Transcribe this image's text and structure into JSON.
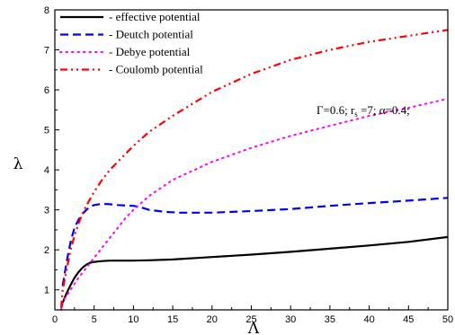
{
  "chart_data": {
    "type": "line",
    "xlabel": "Λ",
    "ylabel": "λ",
    "xlim": [
      0,
      50
    ],
    "ylim": [
      0.5,
      8
    ],
    "x_ticks": [
      "0",
      "5",
      "10",
      "15",
      "20",
      "25",
      "30",
      "35",
      "40",
      "45",
      "50"
    ],
    "y_ticks": [
      "1",
      "2",
      "3",
      "4",
      "5",
      "6",
      "7",
      "8"
    ],
    "grid": false,
    "legend_position": "top-left",
    "annotation": {
      "gamma": "Γ=0.6; r",
      "sub": "s",
      "rs": " =7; ",
      "alpha": "α=0.4;"
    },
    "series": [
      {
        "name": "effective potential",
        "legend_label": "- effective potential",
        "color": "#000000",
        "dash": "solid",
        "x": [
          0.8,
          1,
          1.5,
          2,
          2.5,
          3,
          3.5,
          4,
          4.5,
          5,
          6,
          7,
          8,
          10,
          12,
          15,
          20,
          25,
          30,
          35,
          40,
          45,
          50
        ],
        "y": [
          0.55,
          0.68,
          0.92,
          1.12,
          1.3,
          1.44,
          1.55,
          1.63,
          1.68,
          1.7,
          1.72,
          1.73,
          1.73,
          1.73,
          1.74,
          1.76,
          1.82,
          1.88,
          1.95,
          2.03,
          2.11,
          2.2,
          2.32
        ]
      },
      {
        "name": "Deutch potential",
        "legend_label": "- Deutch potential",
        "color": "#0000ff",
        "dash": "dashed",
        "x": [
          1,
          1.5,
          2,
          2.5,
          3,
          3.5,
          4,
          4.5,
          5,
          6,
          7,
          8,
          9,
          10,
          11,
          12,
          14,
          16,
          18,
          20,
          25,
          30,
          35,
          40,
          45,
          50
        ],
        "y": [
          1.1,
          1.7,
          2.2,
          2.55,
          2.75,
          2.9,
          3.0,
          3.08,
          3.12,
          3.15,
          3.14,
          3.12,
          3.11,
          3.1,
          3.06,
          3.0,
          2.95,
          2.93,
          2.93,
          2.93,
          2.97,
          3.02,
          3.1,
          3.17,
          3.23,
          3.3
        ]
      },
      {
        "name": "Debye potential",
        "legend_label": "- Debye potential",
        "color": "#ff00ff",
        "dash": "dotted",
        "x": [
          0.8,
          1,
          2,
          3,
          4,
          5,
          6,
          7,
          8,
          9,
          10,
          12,
          15,
          20,
          25,
          30,
          35,
          40,
          45,
          50
        ],
        "y": [
          0.5,
          0.7,
          1.0,
          1.3,
          1.55,
          1.8,
          2.05,
          2.3,
          2.55,
          2.8,
          3.0,
          3.35,
          3.75,
          4.2,
          4.55,
          4.85,
          5.1,
          5.35,
          5.55,
          5.78
        ]
      },
      {
        "name": "Coulomb potential",
        "legend_label": "- Coulomb potential",
        "color": "#ff0000",
        "dash": "dashdotdot",
        "x": [
          0.8,
          1,
          1.5,
          2,
          2.5,
          3,
          3.5,
          4,
          5,
          6,
          7,
          8,
          10,
          12,
          15,
          20,
          25,
          30,
          35,
          40,
          45,
          50
        ],
        "y": [
          0.55,
          1.0,
          1.5,
          2.0,
          2.35,
          2.65,
          2.9,
          3.1,
          3.45,
          3.75,
          4.0,
          4.2,
          4.6,
          4.95,
          5.35,
          5.95,
          6.4,
          6.75,
          7.0,
          7.2,
          7.35,
          7.5
        ]
      }
    ]
  }
}
